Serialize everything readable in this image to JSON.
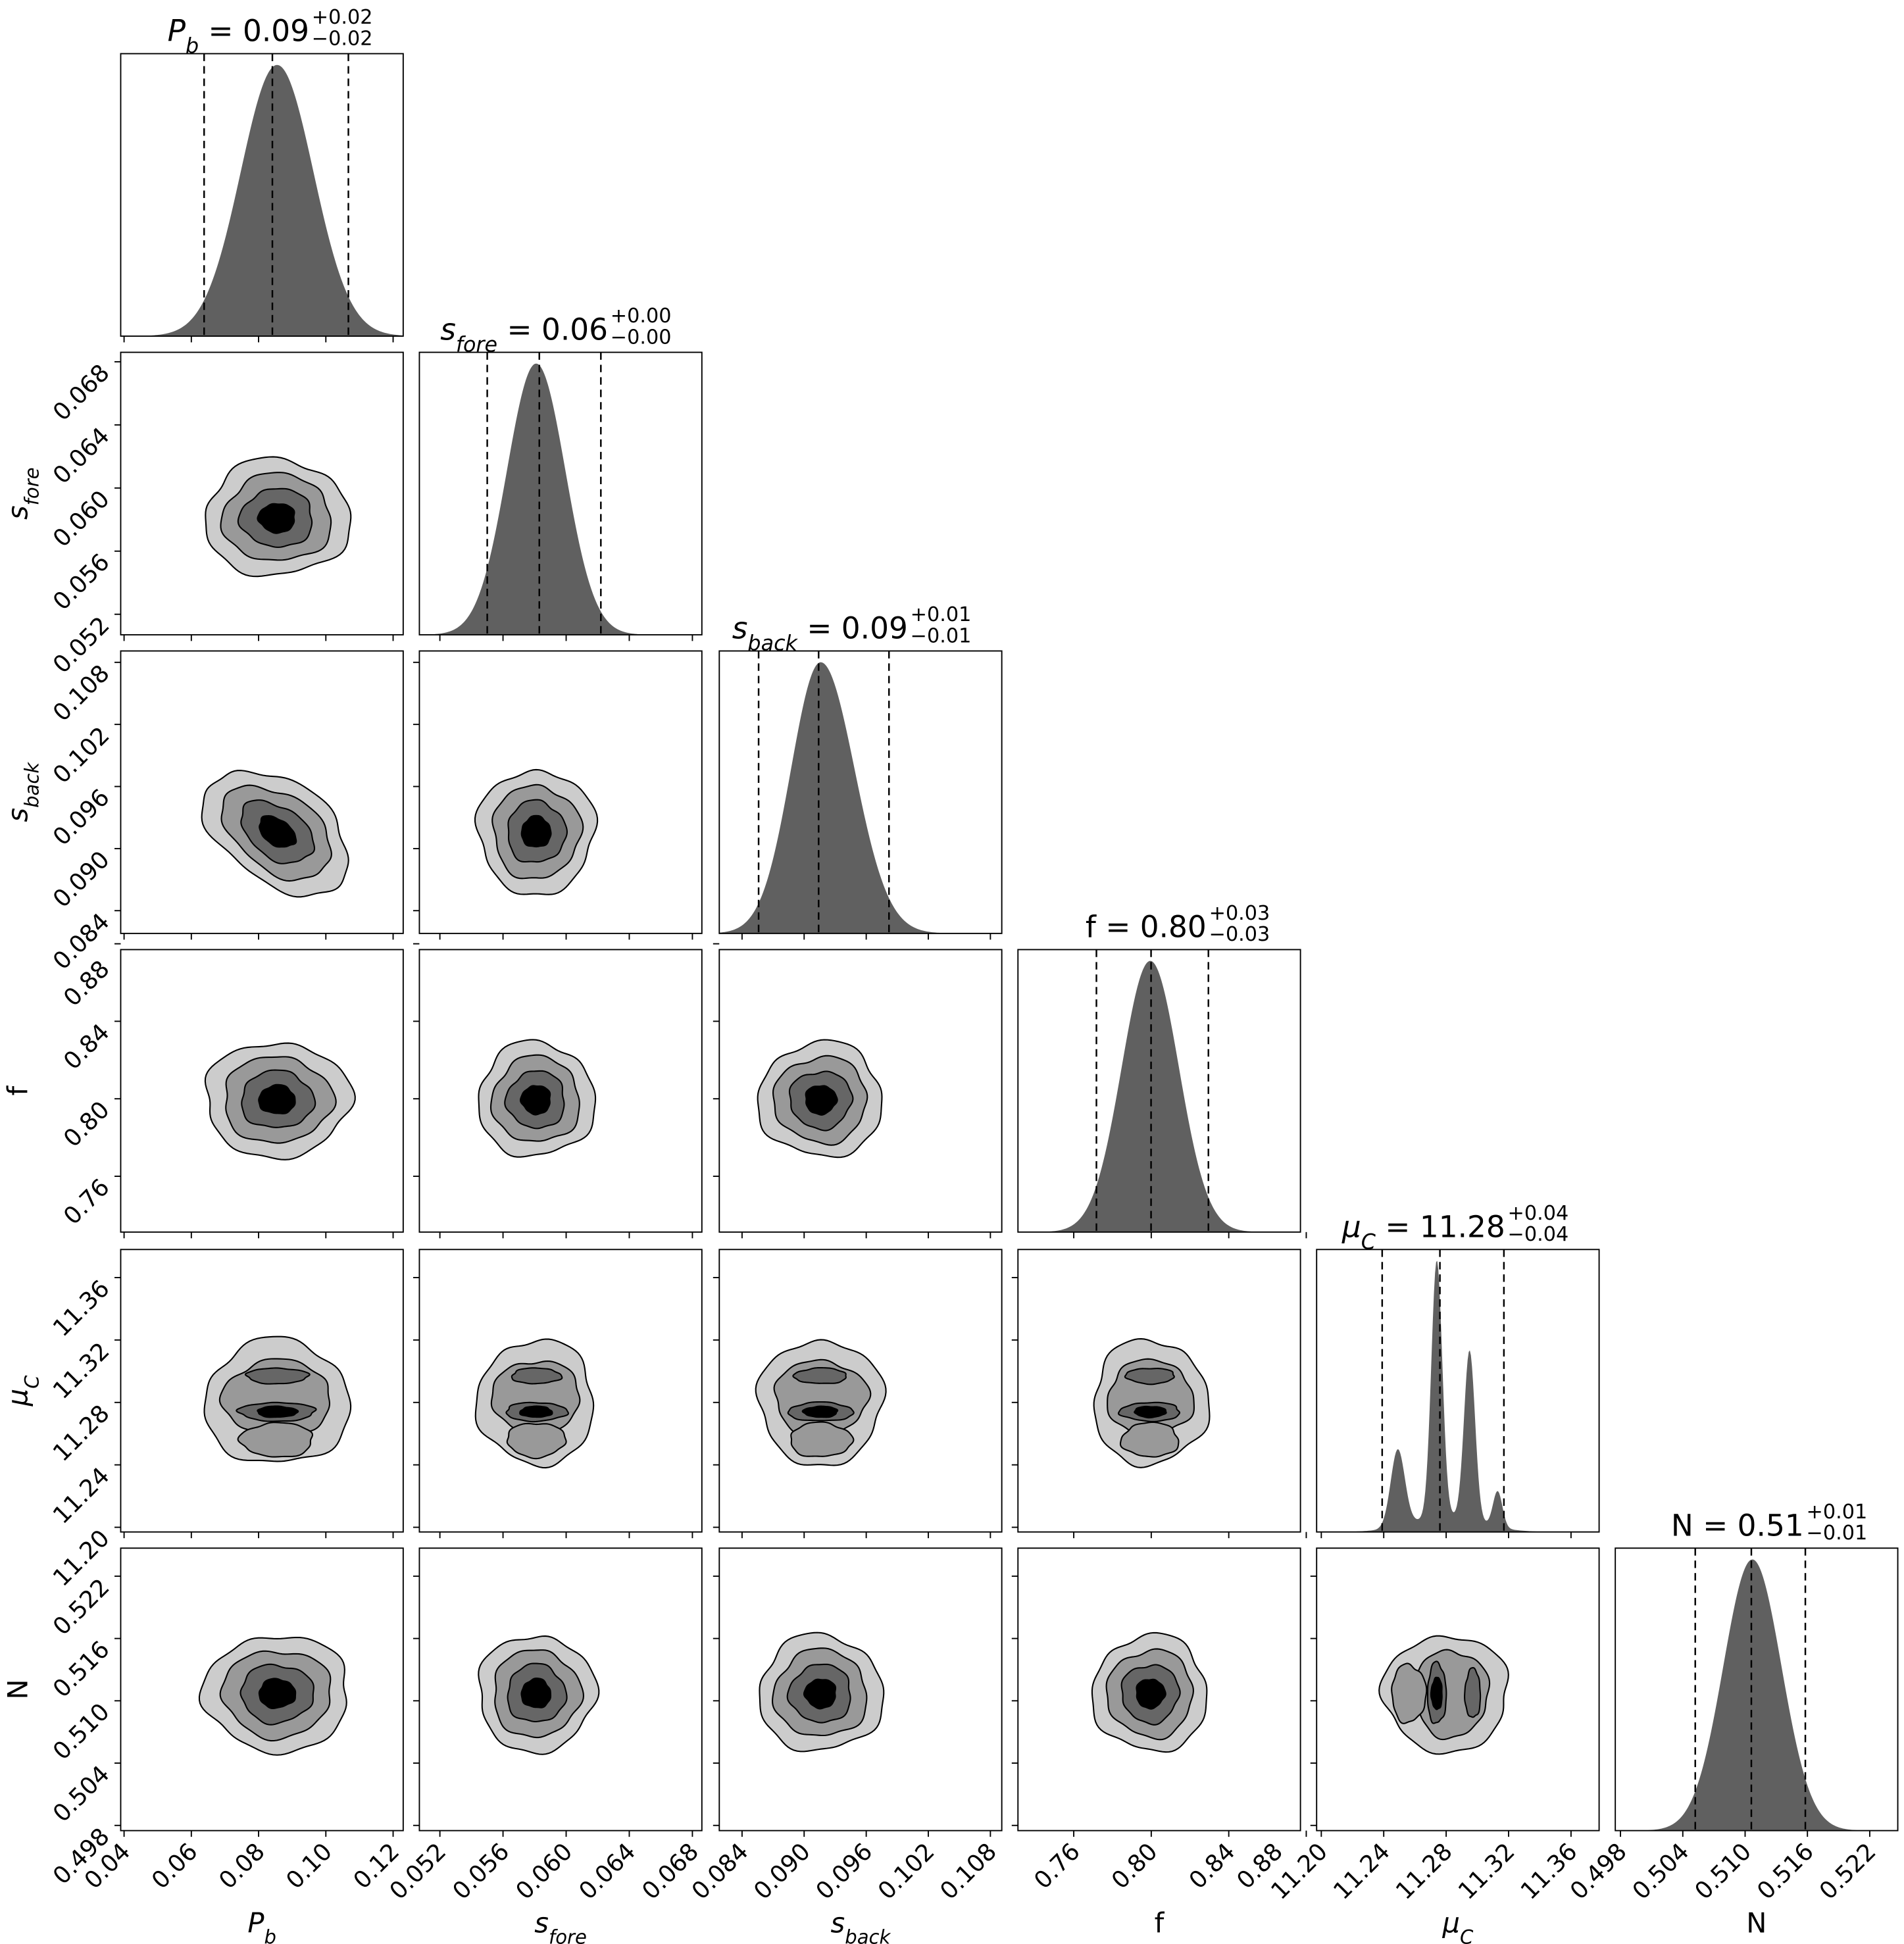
{
  "chart_data": {
    "type": "corner",
    "title": "",
    "parameters": [
      {
        "key": "P_b",
        "label": {
          "main": "P",
          "sub": "b",
          "italic": true
        },
        "mean": 0.0855,
        "sigma": 0.0108,
        "skew": 0,
        "range": [
          0.039,
          0.123
        ],
        "ticks": [
          "0.04",
          "0.06",
          "0.08",
          "0.10",
          "0.12"
        ],
        "quantiles": [
          0.0638,
          0.0841,
          0.1067
        ],
        "title": {
          "eq": " = ",
          "value": "0.09",
          "plus": "+0.02",
          "minus": "−0.02"
        }
      },
      {
        "key": "s_fore",
        "label": {
          "main": "s",
          "sub": "fore",
          "italic": true
        },
        "mean": 0.0581,
        "sigma": 0.00185,
        "skew": 0,
        "range": [
          0.0507,
          0.0686
        ],
        "ticks": [
          "0.052",
          "0.056",
          "0.060",
          "0.064",
          "0.068"
        ],
        "quantiles": [
          0.055,
          0.0583,
          0.0622
        ],
        "title": {
          "eq": " = ",
          "value": "0.06",
          "plus": "+0.00",
          "minus": "−0.00"
        }
      },
      {
        "key": "s_back",
        "label": {
          "main": "s",
          "sub": "back",
          "italic": true
        },
        "mean": 0.0916,
        "sigma": 0.003,
        "skew": 0.3,
        "range": [
          0.0818,
          0.1091
        ],
        "ticks": [
          "0.084",
          "0.090",
          "0.096",
          "0.102",
          "0.108"
        ],
        "quantiles": [
          0.0856,
          0.0914,
          0.0982
        ],
        "title": {
          "eq": " = ",
          "value": "0.09",
          "plus": "+0.01",
          "minus": "−0.01"
        }
      },
      {
        "key": "f",
        "label": {
          "main": "f",
          "sub": "",
          "italic": false
        },
        "mean": 0.7995,
        "sigma": 0.0148,
        "skew": 0,
        "range": [
          0.7312,
          0.877
        ],
        "ticks": [
          "0.76",
          "0.80",
          "0.84",
          "0.88"
        ],
        "quantiles": [
          0.7717,
          0.7999,
          0.8295
        ],
        "title": {
          "eq": " = ",
          "value": "0.80",
          "plus": "+0.03",
          "minus": "−0.03"
        }
      },
      {
        "key": "mu_C",
        "label": {
          "main": "μ",
          "sub": "C",
          "italic": true
        },
        "mean": 11.279,
        "sigma": 0.02,
        "skew": 0,
        "range": [
          11.197,
          11.378
        ],
        "ticks": [
          "11.20",
          "11.24",
          "11.28",
          "11.32",
          "11.36"
        ],
        "quantiles": [
          11.239,
          11.276,
          11.317
        ],
        "modes": [
          {
            "mu": 11.249,
            "sigma": 0.0045,
            "weight": 0.3
          },
          {
            "mu": 11.274,
            "sigma": 0.0035,
            "weight": 1.0
          },
          {
            "mu": 11.295,
            "sigma": 0.0035,
            "weight": 0.66
          },
          {
            "mu": 11.313,
            "sigma": 0.003,
            "weight": 0.14
          },
          {
            "mu": 11.28,
            "sigma": 0.022,
            "weight": 0.06
          }
        ],
        "title": {
          "eq": " = ",
          "value": "11.28",
          "plus": "+0.04",
          "minus": "−0.04"
        }
      },
      {
        "key": "N",
        "label": {
          "main": "N",
          "sub": "",
          "italic": false
        },
        "mean": 0.5107,
        "sigma": 0.0028,
        "skew": 0,
        "range": [
          0.4975,
          0.5247
        ],
        "ticks": [
          "0.498",
          "0.504",
          "0.510",
          "0.516",
          "0.522"
        ],
        "quantiles": [
          0.5052,
          0.5106,
          0.5158
        ],
        "title": {
          "eq": " = ",
          "value": "0.51",
          "plus": "+0.01",
          "minus": "−0.01"
        }
      }
    ],
    "correlations": [
      {
        "a": "P_b",
        "b": "s_back",
        "rho": -0.42
      }
    ],
    "contour_levels_sigma": [
      2,
      1.5,
      1,
      0.5
    ],
    "mu_C_lobes": [
      {
        "level": 0,
        "mu": 11.28,
        "half": 0.04,
        "other_sigma": 2.0
      },
      {
        "level": 1,
        "mu": 11.283,
        "half": 0.024,
        "other_sigma": 1.5
      },
      {
        "level": 1,
        "mu": 11.256,
        "half": 0.011,
        "other_sigma": 1.0
      },
      {
        "level": 2,
        "mu": 11.274,
        "half": 0.006,
        "other_sigma": 1.05
      },
      {
        "level": 2,
        "mu": 11.297,
        "half": 0.005,
        "other_sigma": 0.85
      },
      {
        "level": 3,
        "mu": 11.274,
        "half": 0.0035,
        "other_sigma": 0.55
      }
    ],
    "colors": {
      "levels": [
        "#cccccc",
        "#999999",
        "#666666",
        "#000000"
      ],
      "histogram": "#606060",
      "line": "#000000"
    }
  }
}
